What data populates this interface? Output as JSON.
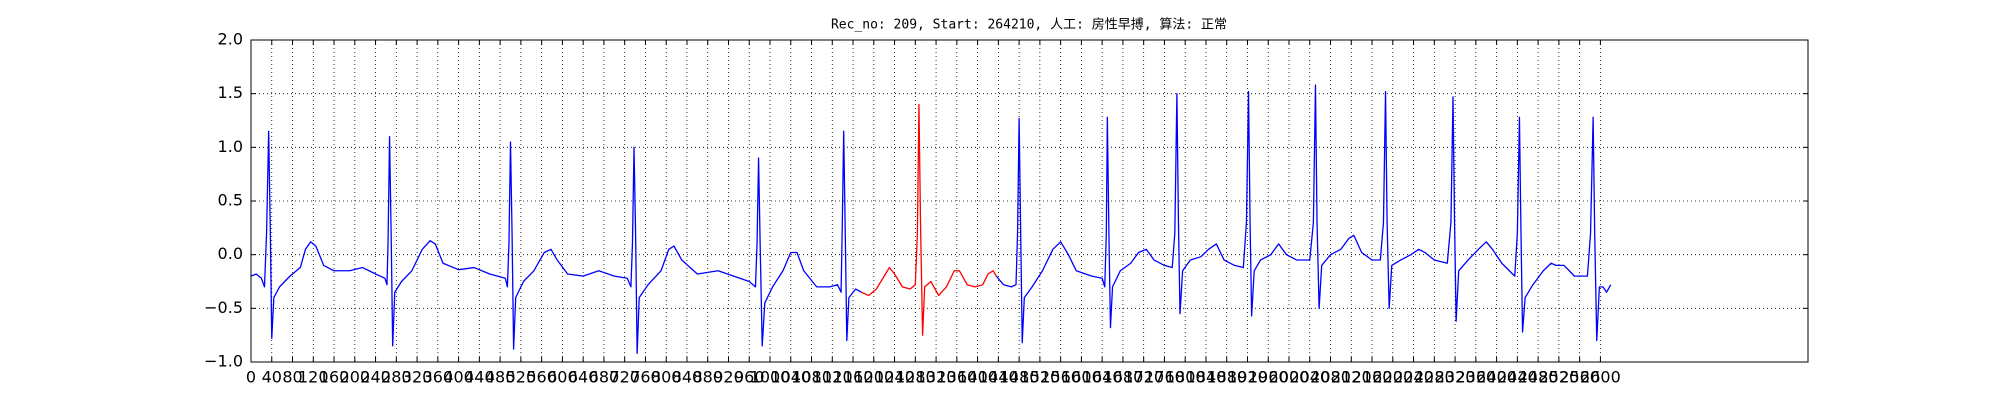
{
  "chart_data": {
    "type": "line",
    "title": "Rec_no: 209, Start: 264210, 人工: 房性早搏, 算法: 正常",
    "xlim": [
      0,
      3000
    ],
    "xticks": [
      0,
      40,
      80,
      120,
      160,
      200,
      240,
      280,
      320,
      360,
      400,
      440,
      480,
      520,
      560,
      600,
      640,
      680,
      720,
      760,
      800,
      840,
      880,
      920,
      960,
      1000,
      1040,
      1080,
      1120,
      1160,
      1200,
      1240,
      1280,
      1320,
      1360,
      1400,
      1440,
      1480,
      1520,
      1560,
      1600,
      1640,
      1680,
      1720,
      1760,
      1800,
      1840,
      1880,
      1920,
      1960,
      2000,
      2040,
      2080,
      2120,
      2160,
      2200,
      2240,
      2280,
      2320,
      2360,
      2400,
      2440,
      2480,
      2520,
      2560,
      2600
    ],
    "ylim": [
      -1,
      2
    ],
    "yticks": [
      {
        "value": -1,
        "label": "−1.0"
      },
      {
        "value": -0.5,
        "label": "−0.5"
      },
      {
        "value": 0,
        "label": "0.0"
      },
      {
        "value": 0.5,
        "label": "0.5"
      },
      {
        "value": 1,
        "label": "1.0"
      },
      {
        "value": 1.5,
        "label": "1.5"
      },
      {
        "value": 2,
        "label": "2.0"
      }
    ],
    "grid": true,
    "series": [
      {
        "color": "#0000ff",
        "x": [
          0,
          10,
          20,
          26,
          30,
          34,
          37,
          40,
          44,
          55,
          75,
          95,
          105,
          115,
          125,
          140,
          160,
          190,
          215,
          240,
          258,
          262,
          264,
          267,
          270,
          273,
          277,
          290,
          310,
          330,
          345,
          355,
          370,
          400,
          430,
          460,
          490,
          494,
          497,
          500,
          503,
          506,
          510,
          525,
          545,
          565,
          578,
          590,
          610,
          640,
          670,
          700,
          725,
          732,
          735,
          738,
          741,
          744,
          748,
          765,
          790,
          805,
          815,
          830,
          860,
          900,
          930,
          960,
          972,
          975,
          978,
          981,
          985,
          990,
          1005,
          1025,
          1040,
          1052,
          1065,
          1090,
          1115,
          1130,
          1137,
          1139,
          1142,
          1145,
          1148,
          1152,
          1165,
          1176
        ],
        "values": [
          -0.2,
          -0.18,
          -0.22,
          -0.3,
          0.2,
          1.15,
          0.3,
          -0.78,
          -0.4,
          -0.3,
          -0.2,
          -0.12,
          0.05,
          0.12,
          0.08,
          -0.1,
          -0.15,
          -0.15,
          -0.12,
          -0.18,
          -0.22,
          -0.28,
          0.1,
          1.1,
          0.2,
          -0.85,
          -0.35,
          -0.25,
          -0.15,
          0.05,
          0.13,
          0.1,
          -0.08,
          -0.14,
          -0.12,
          -0.18,
          -0.22,
          -0.3,
          0.1,
          1.05,
          0.2,
          -0.88,
          -0.4,
          -0.25,
          -0.15,
          0.02,
          0.05,
          -0.05,
          -0.18,
          -0.2,
          -0.15,
          -0.2,
          -0.22,
          -0.3,
          0.1,
          1.0,
          0.2,
          -0.92,
          -0.4,
          -0.28,
          -0.15,
          0.05,
          0.08,
          -0.05,
          -0.18,
          -0.15,
          -0.2,
          -0.25,
          -0.3,
          0.1,
          0.9,
          0.1,
          -0.85,
          -0.45,
          -0.3,
          -0.15,
          0.02,
          0.02,
          -0.15,
          -0.3,
          -0.3,
          -0.28,
          -0.35,
          0.2,
          1.15,
          0.2,
          -0.8,
          -0.4,
          -0.32,
          -0.35
        ]
      },
      {
        "color": "#ff0000",
        "x": [
          1176,
          1190,
          1205,
          1220,
          1230,
          1240,
          1255,
          1270,
          1280,
          1284,
          1287,
          1290,
          1294,
          1298,
          1310,
          1325,
          1340,
          1355,
          1365,
          1380,
          1395,
          1410,
          1420,
          1430,
          1436
        ],
        "values": [
          -0.35,
          -0.38,
          -0.32,
          -0.2,
          -0.12,
          -0.18,
          -0.3,
          -0.32,
          -0.28,
          0.2,
          1.4,
          0.3,
          -0.75,
          -0.3,
          -0.25,
          -0.38,
          -0.3,
          -0.15,
          -0.15,
          -0.28,
          -0.3,
          -0.28,
          -0.18,
          -0.15,
          -0.2
        ]
      },
      {
        "color": "#0000ff",
        "x": [
          1436,
          1450,
          1465,
          1474,
          1477,
          1480,
          1483,
          1486,
          1490,
          1505,
          1525,
          1545,
          1560,
          1575,
          1590,
          1620,
          1640,
          1645,
          1648,
          1650,
          1653,
          1656,
          1660,
          1675,
          1695,
          1710,
          1725,
          1740,
          1760,
          1775,
          1780,
          1784,
          1787,
          1790,
          1795,
          1810,
          1830,
          1845,
          1860,
          1875,
          1895,
          1912,
          1918,
          1922,
          1925,
          1928,
          1933,
          1945,
          1965,
          1980,
          1995,
          2015,
          2040,
          2047,
          2051,
          2054,
          2058,
          2063,
          2080,
          2100,
          2115,
          2125,
          2140,
          2160,
          2176,
          2182,
          2186,
          2189,
          2193,
          2198,
          2215,
          2235,
          2250,
          2262,
          2280,
          2305,
          2312,
          2316,
          2319,
          2322,
          2327,
          2345,
          2365,
          2380,
          2392,
          2410,
          2435,
          2440,
          2444,
          2447,
          2450,
          2455,
          2470,
          2490,
          2505,
          2515,
          2530,
          2550,
          2575,
          2581,
          2586,
          2589,
          2593,
          2598,
          2605,
          2612,
          2620
        ],
        "values": [
          -0.2,
          -0.28,
          -0.3,
          -0.28,
          0.2,
          1.27,
          0.2,
          -0.82,
          -0.4,
          -0.3,
          -0.15,
          0.05,
          0.12,
          0.0,
          -0.15,
          -0.2,
          -0.22,
          -0.3,
          0.2,
          1.28,
          0.2,
          -0.68,
          -0.3,
          -0.15,
          -0.08,
          0.02,
          0.05,
          -0.05,
          -0.1,
          -0.12,
          0.2,
          1.5,
          0.3,
          -0.55,
          -0.15,
          -0.05,
          -0.02,
          0.05,
          0.1,
          -0.05,
          -0.1,
          -0.12,
          0.3,
          1.52,
          0.3,
          -0.57,
          -0.15,
          -0.05,
          0.0,
          0.1,
          0.0,
          -0.05,
          -0.05,
          0.3,
          1.58,
          0.3,
          -0.5,
          -0.1,
          0.0,
          0.05,
          0.15,
          0.18,
          0.02,
          -0.05,
          -0.05,
          0.3,
          1.52,
          0.3,
          -0.5,
          -0.1,
          -0.05,
          0.0,
          0.05,
          0.02,
          -0.05,
          -0.08,
          0.3,
          1.47,
          0.3,
          -0.62,
          -0.15,
          -0.05,
          0.05,
          0.12,
          0.05,
          -0.08,
          -0.2,
          0.2,
          1.28,
          0.2,
          -0.72,
          -0.4,
          -0.28,
          -0.15,
          -0.08,
          -0.1,
          -0.1,
          -0.2,
          -0.2,
          0.2,
          1.28,
          0.2,
          -0.8,
          -0.3,
          -0.3,
          -0.35,
          -0.28
        ]
      }
    ]
  }
}
